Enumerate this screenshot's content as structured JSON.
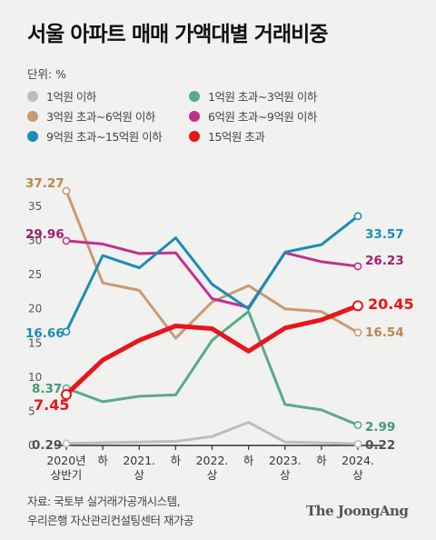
{
  "header": {
    "title": "서울 아파트 매매 가액대별 거래비중",
    "unit": "단위: %"
  },
  "footer": {
    "source_line1": "자료: 국토부 실거래가공개시스템,",
    "source_line2": "우리은행 자산관리컨설팅센터 재가공",
    "brand": "The JoongAng"
  },
  "chart_data": {
    "type": "line",
    "title": "서울 아파트 매매 가액대별 거래비중",
    "ylabel": "",
    "ylim": [
      0,
      37
    ],
    "yticks": [
      "0",
      "5",
      "10",
      "15",
      "20",
      "25",
      "30",
      "35"
    ],
    "grid": false,
    "legend_position": "top",
    "x": [
      "2020년 상반기",
      "하",
      "2021. 상",
      "하",
      "2022. 상",
      "하",
      "2023. 상",
      "하",
      "2024. 상"
    ],
    "x_tick_labels": [
      [
        "2020년",
        "상반기"
      ],
      [
        "하",
        ""
      ],
      [
        "2021.",
        "상"
      ],
      [
        "하",
        ""
      ],
      [
        "2022.",
        "상"
      ],
      [
        "하",
        ""
      ],
      [
        "2023.",
        "상"
      ],
      [
        "하",
        ""
      ],
      [
        "2024.",
        "상"
      ]
    ],
    "series": [
      {
        "name": "1억원 이하",
        "color": "#bdbdbd",
        "values": [
          0.29,
          0.4,
          0.5,
          0.6,
          1.3,
          3.4,
          0.5,
          0.4,
          0.22
        ],
        "start_label": "0.29",
        "end_label": "0.22",
        "label_color": "#555555"
      },
      {
        "name": "1억원 초과~3억원 이하",
        "color": "#5aa98c",
        "values": [
          8.37,
          6.4,
          7.2,
          7.4,
          15.4,
          19.6,
          6.0,
          5.2,
          2.99
        ],
        "start_label": "8.37",
        "end_label": "2.99",
        "label_color": "#3f9a78"
      },
      {
        "name": "3억원 초과~6억원 이하",
        "color": "#c99a72",
        "values": [
          37.27,
          23.8,
          22.7,
          15.7,
          21.0,
          23.4,
          20.0,
          19.6,
          16.54
        ],
        "start_label": "37.27",
        "end_label": "16.54",
        "label_color": "#b98653"
      },
      {
        "name": "6억원 초과~9억원 이하",
        "color": "#c2308c",
        "values": [
          29.96,
          29.5,
          28.1,
          28.2,
          21.5,
          20.2,
          28.2,
          26.9,
          26.23
        ],
        "start_label": "29.96",
        "end_label": "26.23",
        "label_color": "#a0206f"
      },
      {
        "name": "9억원 초과~15억원 이하",
        "color": "#1a8db5",
        "values": [
          16.66,
          27.8,
          26.0,
          30.4,
          23.6,
          20.0,
          28.3,
          29.4,
          33.57
        ],
        "start_label": "16.66",
        "end_label": "33.57",
        "label_color": "#1a8db5"
      },
      {
        "name": "15억원 초과",
        "color": "#e8151a",
        "values": [
          7.45,
          12.5,
          15.4,
          17.5,
          17.1,
          13.8,
          17.2,
          18.4,
          20.45
        ],
        "start_label": "7.45",
        "end_label": "20.45",
        "label_color": "#e8151a"
      }
    ]
  }
}
